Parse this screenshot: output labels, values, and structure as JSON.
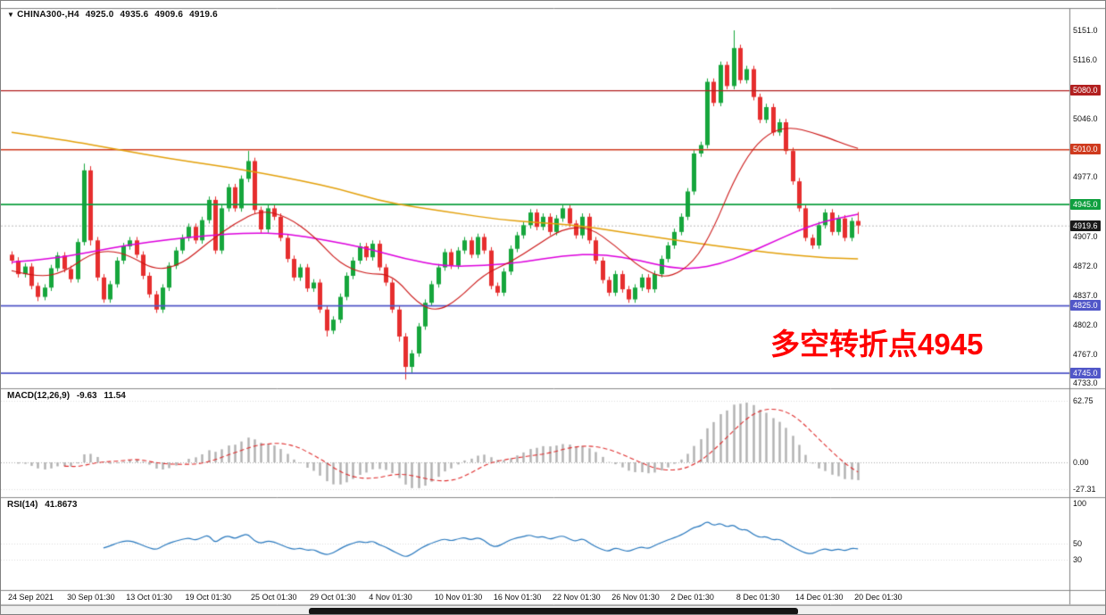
{
  "title": {
    "symbol": "CHINA300-,H4",
    "open": "4925.0",
    "high": "4935.6",
    "low": "4909.6",
    "close": "4919.6"
  },
  "annotation": {
    "text": "多空转折点4945",
    "color": "#ff0000"
  },
  "macd_panel": {
    "name": "MACD(12,26,9)",
    "value1": "-9.63",
    "value2": "11.54",
    "axis": [
      {
        "text": "62.75",
        "v": 62.75
      },
      {
        "text": "0.00",
        "v": 0
      },
      {
        "text": "-27.31",
        "v": -27.31
      }
    ]
  },
  "rsi_panel": {
    "name": "RSI(14)",
    "value": "41.8673",
    "axis": [
      {
        "text": "100",
        "v": 100
      },
      {
        "text": "50",
        "v": 50
      },
      {
        "text": "30",
        "v": 30
      }
    ]
  },
  "price_axis": {
    "ticks": [
      {
        "text": "5151.0",
        "p": 5151
      },
      {
        "text": "5116.0",
        "p": 5116
      },
      {
        "text": "5046.0",
        "p": 5046
      },
      {
        "text": "4977.0",
        "p": 4977
      },
      {
        "text": "4907.0",
        "p": 4907
      },
      {
        "text": "4872.0",
        "p": 4872
      },
      {
        "text": "4837.0",
        "p": 4837
      },
      {
        "text": "4802.0",
        "p": 4802
      },
      {
        "text": "4767.0",
        "p": 4767
      },
      {
        "text": "4733.0",
        "p": 4733
      }
    ],
    "current": {
      "text": "4919.6",
      "p": 4919.6,
      "bg": "#1a1a1a"
    }
  },
  "levels": [
    {
      "text": "5080.0",
      "p": 5080,
      "color": "#b22020",
      "width": 1.4
    },
    {
      "text": "5010.0",
      "p": 5010,
      "color": "#cf3a1e",
      "width": 1.4
    },
    {
      "text": "4945.0",
      "p": 4945,
      "color": "#0f9f3f",
      "width": 1.8
    },
    {
      "text": "4825.0",
      "p": 4825,
      "color": "#5157c8",
      "width": 1.8
    },
    {
      "text": "4745.0",
      "p": 4745,
      "color": "#5157c8",
      "width": 1.8
    }
  ],
  "time_axis": [
    {
      "text": "24 Sep 2021",
      "i": 0
    },
    {
      "text": "30 Sep 01:30",
      "i": 9
    },
    {
      "text": "13 Oct 01:30",
      "i": 18
    },
    {
      "text": "19 Oct 01:30",
      "i": 27
    },
    {
      "text": "25 Oct 01:30",
      "i": 37
    },
    {
      "text": "29 Oct 01:30",
      "i": 46
    },
    {
      "text": "4 Nov 01:30",
      "i": 55
    },
    {
      "text": "10 Nov 01:30",
      "i": 65
    },
    {
      "text": "16 Nov 01:30",
      "i": 74
    },
    {
      "text": "22 Nov 01:30",
      "i": 83
    },
    {
      "text": "26 Nov 01:30",
      "i": 92
    },
    {
      "text": "2 Dec 01:30",
      "i": 101
    },
    {
      "text": "8 Dec 01:30",
      "i": 111
    },
    {
      "text": "14 Dec 01:30",
      "i": 120
    },
    {
      "text": "20 Dec 01:30",
      "i": 129
    }
  ],
  "chart_data": {
    "type": "candlestick",
    "title": "CHINA300-,H4",
    "symbol": "CHINA300-",
    "timeframe": "H4",
    "y_range": [
      4733,
      5151
    ],
    "colors": {
      "up": "#16a63c",
      "down": "#e62e2e",
      "macd_bar": "#b0b0b0",
      "macd_signal": "#e03030",
      "rsi_line": "#2878be"
    },
    "candles": [
      [
        4885,
        4889,
        4874,
        4878
      ],
      [
        4878,
        4882,
        4858,
        4862
      ],
      [
        4862,
        4875,
        4858,
        4871
      ],
      [
        4871,
        4875,
        4844,
        4848
      ],
      [
        4848,
        4852,
        4830,
        4835
      ],
      [
        4835,
        4850,
        4831,
        4846
      ],
      [
        4846,
        4873,
        4842,
        4869
      ],
      [
        4869,
        4888,
        4865,
        4884
      ],
      [
        4884,
        4888,
        4864,
        4868
      ],
      [
        4868,
        4872,
        4852,
        4856
      ],
      [
        4856,
        4904,
        4852,
        4900
      ],
      [
        4900,
        4993,
        4896,
        4985
      ],
      [
        4985,
        4990,
        4896,
        4902
      ],
      [
        4902,
        4906,
        4854,
        4858
      ],
      [
        4858,
        4862,
        4828,
        4832
      ],
      [
        4832,
        4854,
        4828,
        4850
      ],
      [
        4850,
        4882,
        4846,
        4878
      ],
      [
        4878,
        4899,
        4874,
        4895
      ],
      [
        4895,
        4906,
        4891,
        4902
      ],
      [
        4902,
        4906,
        4881,
        4885
      ],
      [
        4885,
        4889,
        4856,
        4860
      ],
      [
        4860,
        4864,
        4834,
        4838
      ],
      [
        4838,
        4842,
        4816,
        4820
      ],
      [
        4820,
        4850,
        4816,
        4846
      ],
      [
        4846,
        4876,
        4842,
        4872
      ],
      [
        4872,
        4894,
        4868,
        4890
      ],
      [
        4890,
        4909,
        4886,
        4905
      ],
      [
        4905,
        4922,
        4901,
        4918
      ],
      [
        4918,
        4922,
        4898,
        4902
      ],
      [
        4902,
        4930,
        4898,
        4926
      ],
      [
        4926,
        4954,
        4922,
        4950
      ],
      [
        4950,
        4954,
        4886,
        4890
      ],
      [
        4890,
        4944,
        4886,
        4940
      ],
      [
        4940,
        4969,
        4936,
        4965
      ],
      [
        4965,
        4969,
        4936,
        4940
      ],
      [
        4940,
        4979,
        4936,
        4975
      ],
      [
        4975,
        5008,
        4971,
        4996
      ],
      [
        4996,
        5000,
        4934,
        4938
      ],
      [
        4938,
        4942,
        4911,
        4915
      ],
      [
        4915,
        4944,
        4911,
        4940
      ],
      [
        4940,
        4944,
        4926,
        4930
      ],
      [
        4930,
        4934,
        4901,
        4905
      ],
      [
        4905,
        4909,
        4876,
        4880
      ],
      [
        4880,
        4884,
        4854,
        4858
      ],
      [
        4858,
        4874,
        4854,
        4870
      ],
      [
        4870,
        4874,
        4841,
        4845
      ],
      [
        4845,
        4856,
        4841,
        4852
      ],
      [
        4852,
        4856,
        4816,
        4820
      ],
      [
        4820,
        4824,
        4788,
        4795
      ],
      [
        4795,
        4812,
        4791,
        4808
      ],
      [
        4808,
        4839,
        4804,
        4835
      ],
      [
        4835,
        4864,
        4831,
        4860
      ],
      [
        4860,
        4882,
        4856,
        4878
      ],
      [
        4878,
        4899,
        4874,
        4895
      ],
      [
        4895,
        4899,
        4878,
        4882
      ],
      [
        4882,
        4902,
        4878,
        4898
      ],
      [
        4898,
        4902,
        4866,
        4870
      ],
      [
        4870,
        4874,
        4848,
        4852
      ],
      [
        4852,
        4856,
        4816,
        4820
      ],
      [
        4820,
        4824,
        4782,
        4788
      ],
      [
        4788,
        4792,
        4737,
        4752
      ],
      [
        4752,
        4772,
        4744,
        4768
      ],
      [
        4768,
        4804,
        4764,
        4800
      ],
      [
        4800,
        4832,
        4796,
        4828
      ],
      [
        4828,
        4854,
        4824,
        4850
      ],
      [
        4850,
        4874,
        4846,
        4870
      ],
      [
        4870,
        4892,
        4866,
        4888
      ],
      [
        4888,
        4892,
        4868,
        4872
      ],
      [
        4872,
        4894,
        4868,
        4890
      ],
      [
        4890,
        4906,
        4886,
        4902
      ],
      [
        4902,
        4906,
        4881,
        4885
      ],
      [
        4885,
        4910,
        4881,
        4906
      ],
      [
        4906,
        4910,
        4886,
        4890
      ],
      [
        4890,
        4894,
        4844,
        4848
      ],
      [
        4848,
        4852,
        4836,
        4840
      ],
      [
        4840,
        4869,
        4836,
        4865
      ],
      [
        4865,
        4896,
        4861,
        4892
      ],
      [
        4892,
        4912,
        4888,
        4908
      ],
      [
        4908,
        4924,
        4904,
        4920
      ],
      [
        4920,
        4939,
        4916,
        4935
      ],
      [
        4935,
        4939,
        4914,
        4918
      ],
      [
        4918,
        4934,
        4914,
        4930
      ],
      [
        4930,
        4934,
        4908,
        4912
      ],
      [
        4912,
        4932,
        4908,
        4928
      ],
      [
        4928,
        4944,
        4924,
        4940
      ],
      [
        4940,
        4944,
        4918,
        4922
      ],
      [
        4922,
        4926,
        4904,
        4908
      ],
      [
        4908,
        4934,
        4904,
        4930
      ],
      [
        4930,
        4934,
        4898,
        4902
      ],
      [
        4902,
        4906,
        4874,
        4878
      ],
      [
        4878,
        4882,
        4851,
        4855
      ],
      [
        4855,
        4859,
        4836,
        4840
      ],
      [
        4840,
        4866,
        4836,
        4862
      ],
      [
        4862,
        4866,
        4840,
        4844
      ],
      [
        4844,
        4848,
        4828,
        4832
      ],
      [
        4832,
        4850,
        4828,
        4846
      ],
      [
        4846,
        4862,
        4842,
        4858
      ],
      [
        4858,
        4862,
        4840,
        4844
      ],
      [
        4844,
        4866,
        4840,
        4862
      ],
      [
        4862,
        4884,
        4858,
        4880
      ],
      [
        4880,
        4900,
        4876,
        4896
      ],
      [
        4896,
        4916,
        4892,
        4912
      ],
      [
        4912,
        4934,
        4908,
        4930
      ],
      [
        4930,
        4964,
        4926,
        4960
      ],
      [
        4960,
        5009,
        4956,
        5005
      ],
      [
        5005,
        5019,
        5001,
        5015
      ],
      [
        5015,
        5094,
        5011,
        5090
      ],
      [
        5090,
        5094,
        5061,
        5065
      ],
      [
        5065,
        5114,
        5061,
        5110
      ],
      [
        5110,
        5114,
        5081,
        5085
      ],
      [
        5085,
        5151,
        5081,
        5130
      ],
      [
        5130,
        5134,
        5088,
        5092
      ],
      [
        5092,
        5109,
        5088,
        5105
      ],
      [
        5105,
        5109,
        5068,
        5072
      ],
      [
        5072,
        5076,
        5041,
        5045
      ],
      [
        5045,
        5064,
        5041,
        5060
      ],
      [
        5060,
        5064,
        5026,
        5030
      ],
      [
        5030,
        5046,
        5026,
        5042
      ],
      [
        5042,
        5046,
        5004,
        5008
      ],
      [
        5008,
        5012,
        4968,
        4972
      ],
      [
        4972,
        4976,
        4936,
        4940
      ],
      [
        4940,
        4944,
        4901,
        4905
      ],
      [
        4905,
        4909,
        4892,
        4896
      ],
      [
        4896,
        4924,
        4892,
        4920
      ],
      [
        4920,
        4939,
        4916,
        4935
      ],
      [
        4935,
        4939,
        4908,
        4912
      ],
      [
        4912,
        4932,
        4908,
        4928
      ],
      [
        4928,
        4932,
        4901,
        4905
      ],
      [
        4905,
        4929,
        4901,
        4925
      ],
      [
        4925,
        4935.6,
        4909.6,
        4919.6
      ]
    ],
    "ma_lines": [
      {
        "name": "ma-slow-orange",
        "color": "#e3a00a",
        "width": 1.5,
        "points": [
          [
            0,
            5030
          ],
          [
            8,
            5021
          ],
          [
            16,
            5010
          ],
          [
            24,
            4999
          ],
          [
            32,
            4990
          ],
          [
            38,
            4982
          ],
          [
            44,
            4973
          ],
          [
            50,
            4963
          ],
          [
            56,
            4949
          ],
          [
            62,
            4941
          ],
          [
            68,
            4934
          ],
          [
            74,
            4927
          ],
          [
            80,
            4923
          ],
          [
            86,
            4920
          ],
          [
            92,
            4913
          ],
          [
            98,
            4906
          ],
          [
            104,
            4899
          ],
          [
            110,
            4893
          ],
          [
            115,
            4888
          ],
          [
            120,
            4884
          ],
          [
            125,
            4881
          ],
          [
            129,
            4880
          ]
        ]
      },
      {
        "name": "ma-medium-magenta",
        "color": "#dd00dd",
        "width": 1.5,
        "points": [
          [
            0,
            4876
          ],
          [
            6,
            4880
          ],
          [
            12,
            4888
          ],
          [
            18,
            4897
          ],
          [
            24,
            4903
          ],
          [
            30,
            4908
          ],
          [
            36,
            4911
          ],
          [
            42,
            4910
          ],
          [
            48,
            4902
          ],
          [
            54,
            4893
          ],
          [
            60,
            4880
          ],
          [
            66,
            4871
          ],
          [
            72,
            4872
          ],
          [
            78,
            4876
          ],
          [
            84,
            4884
          ],
          [
            90,
            4886
          ],
          [
            96,
            4878
          ],
          [
            100,
            4870
          ],
          [
            104,
            4868
          ],
          [
            108,
            4874
          ],
          [
            112,
            4886
          ],
          [
            116,
            4900
          ],
          [
            120,
            4914
          ],
          [
            124,
            4925
          ],
          [
            129,
            4933
          ]
        ]
      },
      {
        "name": "ma-fast-red",
        "color": "#cc1515",
        "width": 1.1,
        "points": [
          [
            0,
            4866
          ],
          [
            4,
            4858
          ],
          [
            8,
            4864
          ],
          [
            12,
            4886
          ],
          [
            15,
            4890
          ],
          [
            18,
            4884
          ],
          [
            22,
            4866
          ],
          [
            26,
            4874
          ],
          [
            30,
            4900
          ],
          [
            34,
            4922
          ],
          [
            38,
            4938
          ],
          [
            42,
            4930
          ],
          [
            46,
            4908
          ],
          [
            50,
            4874
          ],
          [
            54,
            4862
          ],
          [
            58,
            4862
          ],
          [
            62,
            4826
          ],
          [
            65,
            4818
          ],
          [
            68,
            4832
          ],
          [
            72,
            4862
          ],
          [
            76,
            4876
          ],
          [
            80,
            4896
          ],
          [
            84,
            4916
          ],
          [
            88,
            4918
          ],
          [
            92,
            4896
          ],
          [
            96,
            4868
          ],
          [
            100,
            4856
          ],
          [
            104,
            4876
          ],
          [
            107,
            4916
          ],
          [
            110,
            4972
          ],
          [
            113,
            5012
          ],
          [
            116,
            5032
          ],
          [
            119,
            5036
          ],
          [
            122,
            5030
          ],
          [
            125,
            5022
          ],
          [
            127,
            5016
          ],
          [
            129,
            5011
          ]
        ]
      }
    ],
    "macd": {
      "params": [
        12,
        26,
        9
      ],
      "range": [
        -27.31,
        62.75
      ]
    },
    "rsi": {
      "period": 14,
      "range": [
        0,
        100
      ]
    }
  }
}
